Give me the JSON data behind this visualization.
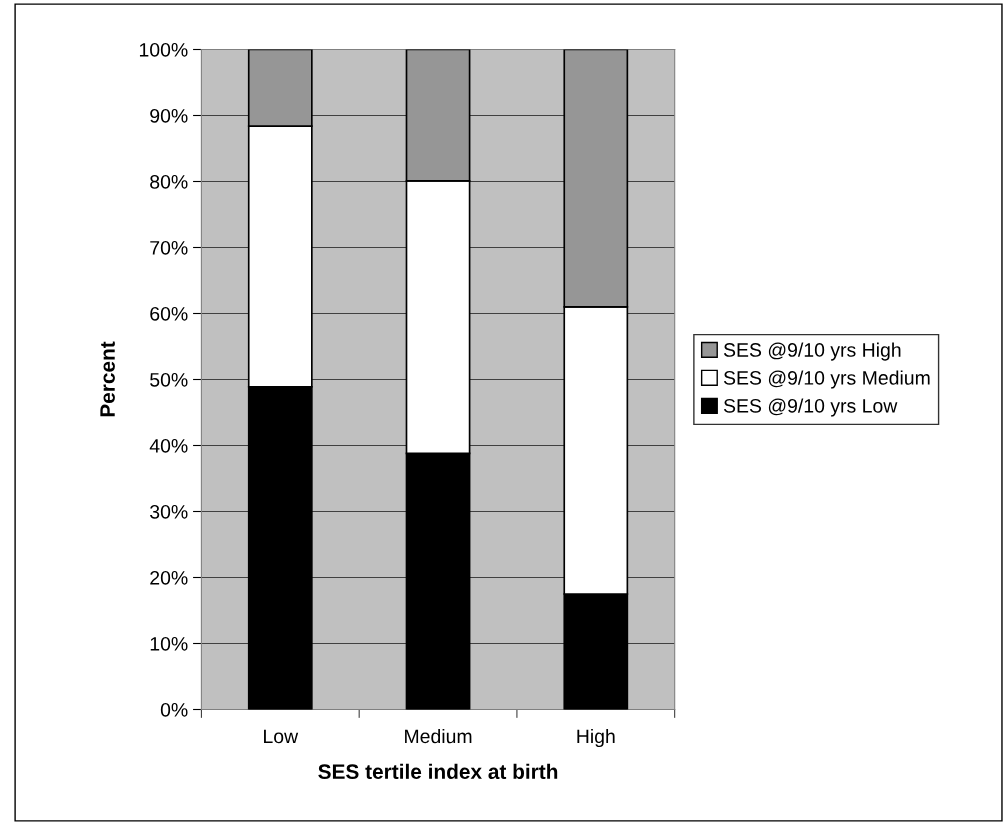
{
  "chart_data": {
    "type": "bar",
    "stacked": true,
    "xlabel": "SES tertile index at birth",
    "ylabel": "Percent",
    "categories": [
      "Low",
      "Medium",
      "High"
    ],
    "series": [
      {
        "name": "SES @9/10 yrs Low",
        "color": "#000000",
        "values": [
          48.9,
          38.8,
          17.5
        ]
      },
      {
        "name": "SES @9/10 yrs Medium",
        "color": "#ffffff",
        "values": [
          39.5,
          41.3,
          43.5
        ]
      },
      {
        "name": "SES @9/10 yrs High",
        "color": "#969696",
        "values": [
          11.6,
          19.9,
          39.0
        ]
      }
    ],
    "ylim": [
      0,
      100
    ],
    "yticks": [
      {
        "value": 0,
        "label": "0%"
      },
      {
        "value": 10,
        "label": "10%"
      },
      {
        "value": 20,
        "label": "20%"
      },
      {
        "value": 30,
        "label": "30%"
      },
      {
        "value": 40,
        "label": "40%"
      },
      {
        "value": 50,
        "label": "50%"
      },
      {
        "value": 60,
        "label": "60%"
      },
      {
        "value": 70,
        "label": "70%"
      },
      {
        "value": 80,
        "label": "80%"
      },
      {
        "value": 90,
        "label": "90%"
      },
      {
        "value": 100,
        "label": "100%"
      }
    ],
    "grid": "y",
    "legend": "right"
  }
}
